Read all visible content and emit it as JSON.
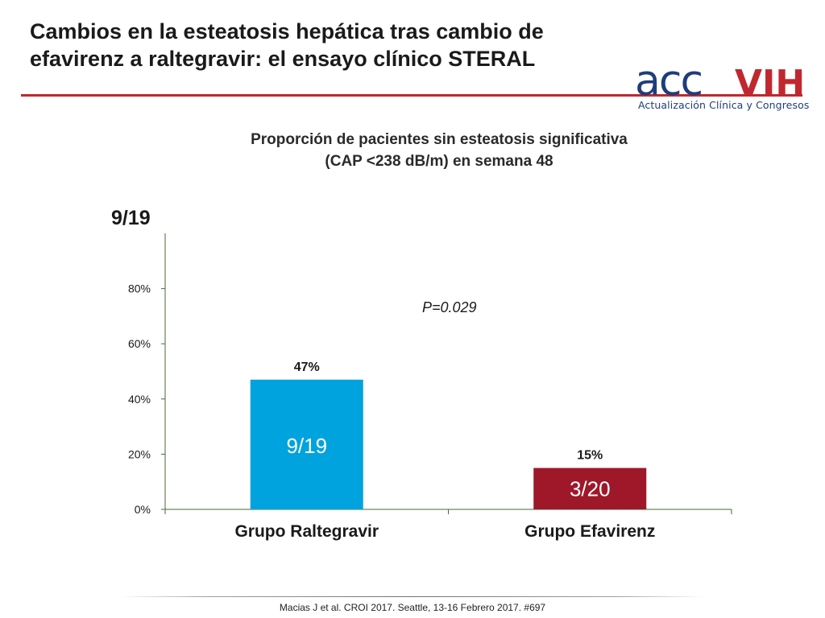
{
  "slide": {
    "title": "Cambios en la esteatosis hepática tras cambio de efavirenz a raltegravir: el ensayo clínico STERAL",
    "accent_color": "#c0282f"
  },
  "logo": {
    "text_left": "acc",
    "text_right": "VIH",
    "subtitle": "Actualización Clínica y Congresos",
    "colors": {
      "acc": "#1f3d7a",
      "vih": "#c0282f"
    }
  },
  "footer": {
    "citation": "Macias J et al. CROI 2017. Seattle, 13-16 Febrero 2017. #697"
  },
  "chart_data": {
    "type": "bar",
    "title": "Proporción de pacientes sin esteatosis significativa",
    "subtitle": "(CAP <238 dB/m) en semana 48",
    "categories": [
      "Grupo Raltegravir",
      "Grupo Efavirenz"
    ],
    "values": [
      47,
      15
    ],
    "value_labels": [
      "47%",
      "15%"
    ],
    "bar_inner_labels": [
      "9/19",
      "3/20"
    ],
    "colors": [
      "#00a3dd",
      "#9e1829"
    ],
    "ylim": [
      0,
      100
    ],
    "yticks": [
      0,
      20,
      40,
      60,
      80
    ],
    "ytick_labels": [
      "0%",
      "20%",
      "40%",
      "60%",
      "80%"
    ],
    "annotations": {
      "top_left": "9/19",
      "p_value": "P=0.029"
    },
    "grid": false,
    "axis_color": "#4a6a3a"
  }
}
